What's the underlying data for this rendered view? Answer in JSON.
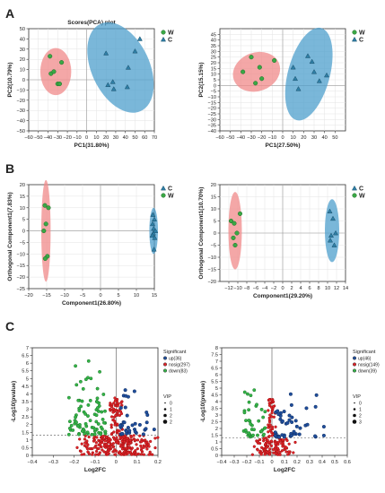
{
  "figure": {
    "panel_labels": [
      "A",
      "B",
      "C"
    ]
  },
  "colors": {
    "W": "#3aa845",
    "C": "#2f7fa6",
    "ellipse_W": "#f08a8a",
    "ellipse_C": "#4d9fcc",
    "up": "#1f4e9c",
    "nosig": "#e0242a",
    "down": "#34b449"
  },
  "chart_data": [
    {
      "type": "scatter",
      "title": "Scores(PCA) plot",
      "xlabel": "PC1(31.80%)",
      "ylabel": "PC2(10.79%)",
      "xlim": [
        -60,
        70
      ],
      "ylim": [
        -50,
        50
      ],
      "xticks": [
        -60,
        -50,
        -40,
        -30,
        -20,
        -10,
        0,
        10,
        20,
        30,
        40,
        50,
        60,
        70
      ],
      "yticks": [
        -50,
        -40,
        -30,
        -20,
        -10,
        0,
        10,
        20,
        30,
        40,
        50
      ],
      "grid": true,
      "legend": [
        "W",
        "C"
      ],
      "legend_position": "top-right",
      "series": [
        {
          "name": "W",
          "marker": "circle",
          "points": [
            [
              -38,
              23
            ],
            [
              -37,
              6
            ],
            [
              -34,
              8
            ],
            [
              -30,
              -4
            ],
            [
              -26,
              17
            ],
            [
              -28,
              -4
            ]
          ],
          "ellipse": {
            "cx": -32,
            "cy": 8,
            "rx": 16,
            "ry": 23,
            "angle": 0
          }
        },
        {
          "name": "C",
          "marker": "triangle",
          "points": [
            [
              20,
              26
            ],
            [
              22,
              -5
            ],
            [
              27,
              -2
            ],
            [
              28,
              -9
            ],
            [
              42,
              -7
            ],
            [
              43,
              12
            ],
            [
              55,
              40
            ],
            [
              50,
              28
            ]
          ],
          "ellipse": {
            "cx": 35,
            "cy": 12,
            "rx": 30,
            "ry": 47,
            "angle": -25
          }
        }
      ]
    },
    {
      "type": "scatter",
      "title": "",
      "xlabel": "PC1(27.50%)",
      "ylabel": "PC2(15.15%)",
      "xlim": [
        -60,
        60
      ],
      "ylim": [
        -40,
        50
      ],
      "xticks": [
        -60,
        -50,
        -40,
        -30,
        -20,
        -10,
        0,
        10,
        20,
        30,
        40,
        50
      ],
      "yticks": [
        -40,
        -35,
        -30,
        -25,
        -20,
        -15,
        -10,
        -5,
        0,
        5,
        10,
        15,
        20,
        25,
        30,
        35,
        40,
        45
      ],
      "grid": true,
      "legend": [
        "W",
        "C"
      ],
      "legend_position": "top-right",
      "series": [
        {
          "name": "W",
          "marker": "circle",
          "points": [
            [
              -30,
              25
            ],
            [
              -38,
              12
            ],
            [
              -22,
              16
            ],
            [
              -20,
              6
            ],
            [
              -26,
              2
            ],
            [
              -8,
              22
            ]
          ],
          "ellipse": {
            "cx": -25,
            "cy": 12,
            "rx": 23,
            "ry": 17,
            "angle": -20
          }
        },
        {
          "name": "C",
          "marker": "triangle",
          "points": [
            [
              12,
              6
            ],
            [
              15,
              -3
            ],
            [
              24,
              26
            ],
            [
              28,
              21
            ],
            [
              30,
              12
            ],
            [
              42,
              9
            ],
            [
              35,
              4
            ],
            [
              10,
              16
            ]
          ],
          "ellipse": {
            "cx": 25,
            "cy": 10,
            "rx": 20,
            "ry": 42,
            "angle": 15
          }
        }
      ]
    },
    {
      "type": "scatter",
      "title": "",
      "xlabel": "Component1(26.80%)",
      "ylabel": "Orthogonal Component1(7.83%)",
      "xlim": [
        -20,
        15
      ],
      "ylim": [
        -25,
        20
      ],
      "xticks": [
        -20,
        -15,
        -10,
        -5,
        0,
        5,
        10,
        15
      ],
      "yticks": [
        -25,
        -20,
        -15,
        -10,
        -5,
        0,
        5,
        10,
        15,
        20
      ],
      "grid": true,
      "legend": [
        "C",
        "W"
      ],
      "legend_position": "top-right",
      "series": [
        {
          "name": "W",
          "marker": "circle",
          "points": [
            [
              -15.5,
              11
            ],
            [
              -14.5,
              10
            ],
            [
              -15.2,
              3
            ],
            [
              -15.8,
              0
            ],
            [
              -14.8,
              -11
            ],
            [
              -15.4,
              -12
            ]
          ],
          "ellipse": {
            "cx": -15.2,
            "cy": 0,
            "rx": 1.3,
            "ry": 22,
            "angle": 0
          }
        },
        {
          "name": "C",
          "marker": "triangle",
          "points": [
            [
              14.6,
              7
            ],
            [
              15,
              5
            ],
            [
              14.5,
              3
            ],
            [
              14.8,
              1
            ],
            [
              14.7,
              -1
            ],
            [
              15.3,
              0
            ],
            [
              14.4,
              -2
            ],
            [
              15.1,
              -3
            ],
            [
              14.9,
              -8
            ]
          ],
          "ellipse": {
            "cx": 14.8,
            "cy": 0,
            "rx": 1.2,
            "ry": 10,
            "angle": 0
          }
        }
      ]
    },
    {
      "type": "scatter",
      "title": "",
      "xlabel": "Component1(29.20%)",
      "ylabel": "Orthogonal Component1(10.70%)",
      "xlim": [
        -14,
        14
      ],
      "ylim": [
        -20,
        20
      ],
      "xticks": [
        -12,
        -10,
        -8,
        -6,
        -4,
        -2,
        0,
        2,
        4,
        6,
        8,
        10,
        12,
        14
      ],
      "yticks": [
        -20,
        -15,
        -10,
        -5,
        0,
        5,
        10,
        15,
        20
      ],
      "grid": true,
      "legend": [
        "C",
        "W"
      ],
      "legend_position": "top-right",
      "series": [
        {
          "name": "W",
          "marker": "circle",
          "points": [
            [
              -11.5,
              5
            ],
            [
              -10.8,
              4
            ],
            [
              -9.5,
              8
            ],
            [
              -10.2,
              0
            ],
            [
              -11,
              -2
            ],
            [
              -10.6,
              -5
            ]
          ],
          "ellipse": {
            "cx": -10.6,
            "cy": 1,
            "rx": 1.5,
            "ry": 16,
            "angle": 0
          }
        },
        {
          "name": "C",
          "marker": "triangle",
          "points": [
            [
              10.5,
              9
            ],
            [
              11.2,
              6
            ],
            [
              11.8,
              0
            ],
            [
              10.8,
              -1
            ],
            [
              11.5,
              -5
            ],
            [
              10.6,
              -3
            ]
          ],
          "ellipse": {
            "cx": 11,
            "cy": 1,
            "rx": 1.6,
            "ry": 13,
            "angle": 0
          }
        }
      ]
    },
    {
      "type": "scatter",
      "title": "",
      "xlabel": "Log2FC",
      "ylabel": "-Log10(pvalue)",
      "xlim": [
        -0.4,
        0.2
      ],
      "ylim": [
        0,
        7
      ],
      "xticks": [
        -0.4,
        -0.3,
        -0.2,
        -0.1,
        0,
        0.1,
        0.2
      ],
      "yticks": [
        0,
        0.5,
        1,
        1.5,
        2,
        2.5,
        3,
        3.5,
        4,
        4.5,
        5,
        5.5,
        6,
        6.5,
        7
      ],
      "threshold_y": 1.3,
      "threshold_x": 0,
      "legend_title": "Significant",
      "legend": [
        "up(36)",
        "nosig(297)",
        "down(83)"
      ],
      "size_legend_title": "VIP",
      "size_legend": [
        "0",
        "1",
        "2",
        "2"
      ],
      "groups": {
        "up": 36,
        "nosig": 297,
        "down": 83
      },
      "x_range_nosig": [
        -0.15,
        0.15
      ],
      "x_range_down": [
        -0.3,
        -0.05
      ],
      "x_range_up": [
        0.02,
        0.2
      ],
      "max_y": 6.8
    },
    {
      "type": "scatter",
      "title": "",
      "xlabel": "Log2FC",
      "ylabel": "-Log10(pvalue)",
      "xlim": [
        -0.4,
        0.6
      ],
      "ylim": [
        0,
        8
      ],
      "xticks": [
        -0.4,
        -0.3,
        -0.2,
        -0.1,
        0,
        0.1,
        0.2,
        0.3,
        0.4,
        0.5,
        0.6
      ],
      "yticks": [
        0,
        0.5,
        1,
        1.5,
        2,
        2.5,
        3,
        3.5,
        4,
        4.5,
        5,
        5.5,
        6,
        6.5,
        7,
        7.5,
        8
      ],
      "threshold_y": 1.3,
      "threshold_x": 0,
      "legend_title": "Significant",
      "legend": [
        "up(46)",
        "nosig(149)",
        "down(39)"
      ],
      "size_legend_title": "VIP",
      "size_legend": [
        "0",
        "1",
        "2",
        "3"
      ],
      "groups": {
        "up": 46,
        "nosig": 149,
        "down": 39
      },
      "x_range_nosig": [
        -0.12,
        0.15
      ],
      "x_range_down": [
        -0.3,
        -0.05
      ],
      "x_range_up": [
        0.02,
        0.5
      ],
      "max_y": 7.6
    }
  ]
}
